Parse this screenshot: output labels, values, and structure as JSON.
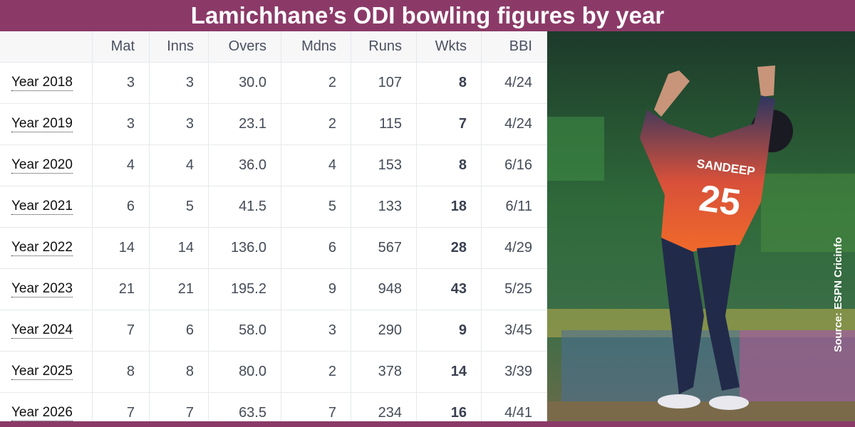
{
  "header": {
    "title": "Lamichhane’s ODI bowling figures by year"
  },
  "table": {
    "columns": [
      "",
      "Mat",
      "Inns",
      "Overs",
      "Mdns",
      "Runs",
      "Wkts",
      "BBI"
    ],
    "rows": [
      [
        "Year 2018",
        "3",
        "3",
        "30.0",
        "2",
        "107",
        "8",
        "4/24"
      ],
      [
        "Year 2019",
        "3",
        "3",
        "23.1",
        "2",
        "115",
        "7",
        "4/24"
      ],
      [
        "Year 2020",
        "4",
        "4",
        "36.0",
        "4",
        "153",
        "8",
        "6/16"
      ],
      [
        "Year 2021",
        "6",
        "5",
        "41.5",
        "5",
        "133",
        "18",
        "6/11"
      ],
      [
        "Year 2022",
        "14",
        "14",
        "136.0",
        "6",
        "567",
        "28",
        "4/29"
      ],
      [
        "Year 2023",
        "21",
        "21",
        "195.2",
        "9",
        "948",
        "43",
        "5/25"
      ],
      [
        "Year 2024",
        "7",
        "6",
        "58.0",
        "3",
        "290",
        "9",
        "3/45"
      ],
      [
        "Year 2025",
        "8",
        "8",
        "80.0",
        "2",
        "378",
        "14",
        "3/39"
      ],
      [
        "Year 2026",
        "7",
        "7",
        "63.5",
        "7",
        "234",
        "16",
        "4/41"
      ]
    ]
  },
  "photo": {
    "jersey_name": "SANDEEP",
    "jersey_number": "25",
    "source": "Source: ESPN Cricinfo"
  }
}
